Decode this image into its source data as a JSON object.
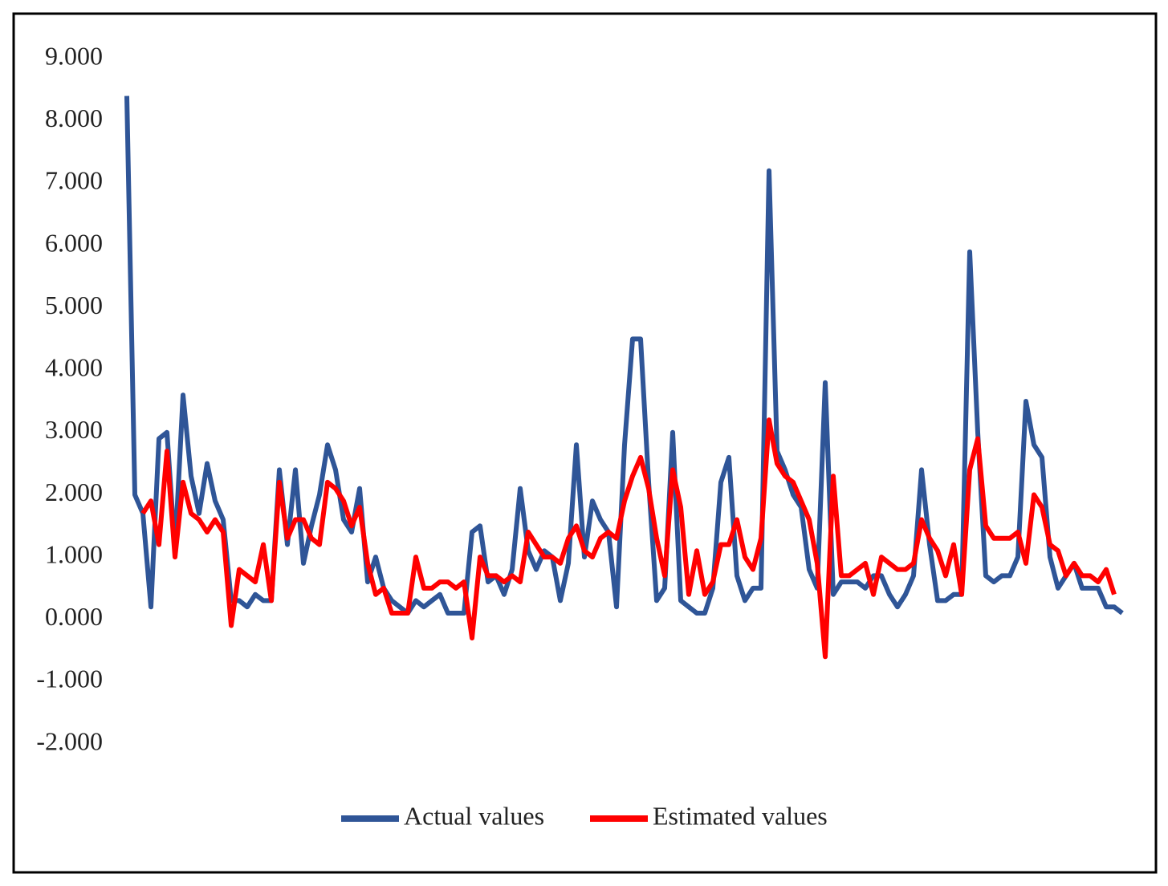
{
  "chart_data": {
    "type": "line",
    "ylim": [
      -2,
      9
    ],
    "yticks": [
      {
        "value": 9,
        "label": "9.000"
      },
      {
        "value": 8,
        "label": "8.000"
      },
      {
        "value": 7,
        "label": "7.000"
      },
      {
        "value": 6,
        "label": "6.000"
      },
      {
        "value": 5,
        "label": "5.000"
      },
      {
        "value": 4,
        "label": "4.000"
      },
      {
        "value": 3,
        "label": "3.000"
      },
      {
        "value": 2,
        "label": "2.000"
      },
      {
        "value": 1,
        "label": "1.000"
      },
      {
        "value": 0,
        "label": "0.000"
      },
      {
        "value": -1,
        "label": "-1.000"
      },
      {
        "value": -2,
        "label": "-2.000"
      }
    ],
    "grid": false,
    "legend": "bottom",
    "series": [
      {
        "name": "Actual values",
        "color": "#2f5597",
        "values": [
          8.4,
          2.0,
          1.7,
          0.2,
          2.9,
          3.0,
          1.1,
          3.6,
          2.3,
          1.7,
          2.5,
          1.9,
          1.6,
          0.3,
          0.3,
          0.2,
          0.4,
          0.3,
          0.3,
          2.4,
          1.2,
          2.4,
          0.9,
          1.5,
          2.0,
          2.8,
          2.4,
          1.6,
          1.4,
          2.1,
          0.6,
          1.0,
          0.5,
          0.3,
          0.2,
          0.1,
          0.3,
          0.2,
          0.3,
          0.4,
          0.1,
          0.1,
          0.1,
          1.4,
          1.5,
          0.6,
          0.7,
          0.4,
          0.8,
          2.1,
          1.1,
          0.8,
          1.1,
          1.0,
          0.3,
          0.9,
          2.8,
          1.0,
          1.9,
          1.6,
          1.4,
          0.2,
          2.8,
          4.5,
          4.5,
          2.2,
          0.3,
          0.5,
          3.0,
          0.3,
          0.2,
          0.1,
          0.1,
          0.5,
          2.2,
          2.6,
          0.7,
          0.3,
          0.5,
          0.5,
          7.2,
          2.7,
          2.4,
          2.0,
          1.8,
          0.8,
          0.5,
          3.8,
          0.4,
          0.6,
          0.6,
          0.6,
          0.5,
          0.7,
          0.7,
          0.4,
          0.2,
          0.4,
          0.7,
          2.4,
          1.2,
          0.3,
          0.3,
          0.4,
          0.4,
          5.9,
          3.0,
          0.7,
          0.6,
          0.7,
          0.7,
          1.0,
          3.5,
          2.8,
          2.6,
          1.0,
          0.5,
          0.7,
          0.9,
          0.5,
          0.5,
          0.5,
          0.2,
          0.2,
          0.1
        ]
      },
      {
        "name": "Estimated values",
        "color": "#ff0000",
        "values": [
          null,
          null,
          1.7,
          1.9,
          1.2,
          2.7,
          1.0,
          2.2,
          1.7,
          1.6,
          1.4,
          1.6,
          1.4,
          -0.1,
          0.8,
          0.7,
          0.6,
          1.2,
          0.3,
          2.2,
          1.3,
          1.6,
          1.6,
          1.3,
          1.2,
          2.2,
          2.1,
          1.9,
          1.5,
          1.8,
          0.9,
          0.4,
          0.5,
          0.1,
          0.1,
          0.1,
          1.0,
          0.5,
          0.5,
          0.6,
          0.6,
          0.5,
          0.6,
          -0.3,
          1.0,
          0.7,
          0.7,
          0.6,
          0.7,
          0.6,
          1.4,
          1.2,
          1.0,
          1.0,
          0.9,
          1.3,
          1.5,
          1.1,
          1.0,
          1.3,
          1.4,
          1.3,
          1.9,
          2.3,
          2.6,
          2.1,
          1.3,
          0.7,
          2.4,
          1.8,
          0.4,
          1.1,
          0.4,
          0.6,
          1.2,
          1.2,
          1.6,
          1.0,
          0.8,
          1.3,
          3.2,
          2.5,
          2.3,
          2.2,
          1.9,
          1.6,
          0.9,
          -0.6,
          2.3,
          0.7,
          0.7,
          0.8,
          0.9,
          0.4,
          1.0,
          0.9,
          0.8,
          0.8,
          0.9,
          1.6,
          1.3,
          1.1,
          0.7,
          1.2,
          0.4,
          2.4,
          2.9,
          1.5,
          1.3,
          1.3,
          1.3,
          1.4,
          0.9,
          2.0,
          1.8,
          1.2,
          1.1,
          0.7,
          0.9,
          0.7,
          0.7,
          0.6,
          0.8,
          0.4,
          null
        ]
      }
    ]
  }
}
